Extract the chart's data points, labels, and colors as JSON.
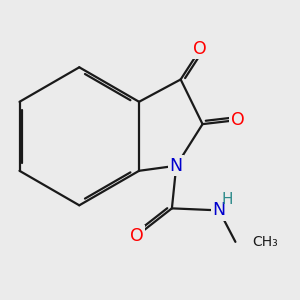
{
  "bg_color": "#ebebeb",
  "bond_color": "#1a1a1a",
  "bond_width": 1.6,
  "dbo": 0.1,
  "atom_colors": {
    "O": "#ff0000",
    "N": "#0000cd",
    "H": "#2e8b8b",
    "C": "#1a1a1a"
  },
  "fs": 12.5
}
